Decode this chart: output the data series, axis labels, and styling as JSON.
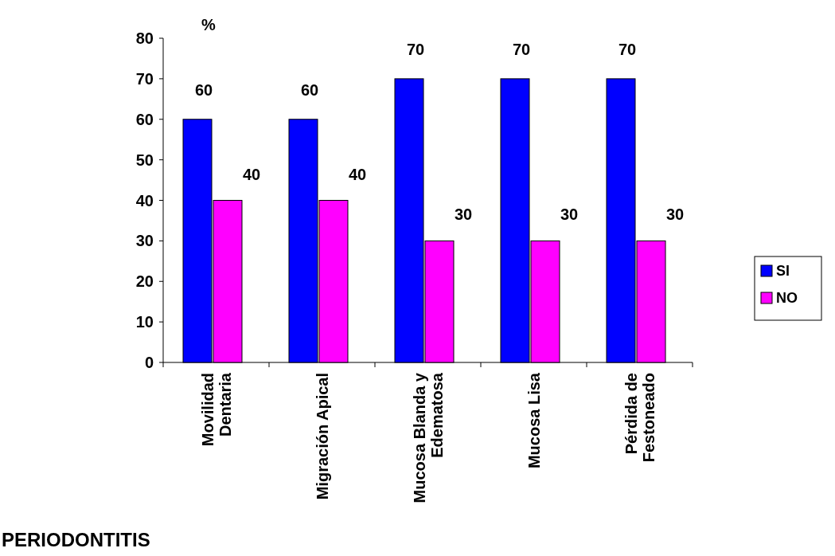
{
  "chart_data": {
    "type": "bar",
    "title": "PERIODONTITIS",
    "ylabel": "%",
    "categories": [
      "Movilidad Dentaria",
      "Migración Apical",
      "Mucosa Blanda y Edematosa",
      "Mucosa Lisa",
      "Pérdida de Festoneado"
    ],
    "series": [
      {
        "name": "SI",
        "color": "#0000ff",
        "values": [
          60,
          60,
          70,
          70,
          70
        ]
      },
      {
        "name": "NO",
        "color": "#ff00ff",
        "values": [
          40,
          40,
          30,
          30,
          30
        ]
      }
    ],
    "ylim": [
      0,
      80
    ],
    "yticks": [
      0,
      10,
      20,
      30,
      40,
      50,
      60,
      70,
      80
    ],
    "data_labels": true,
    "legend": "right",
    "grid": false
  }
}
